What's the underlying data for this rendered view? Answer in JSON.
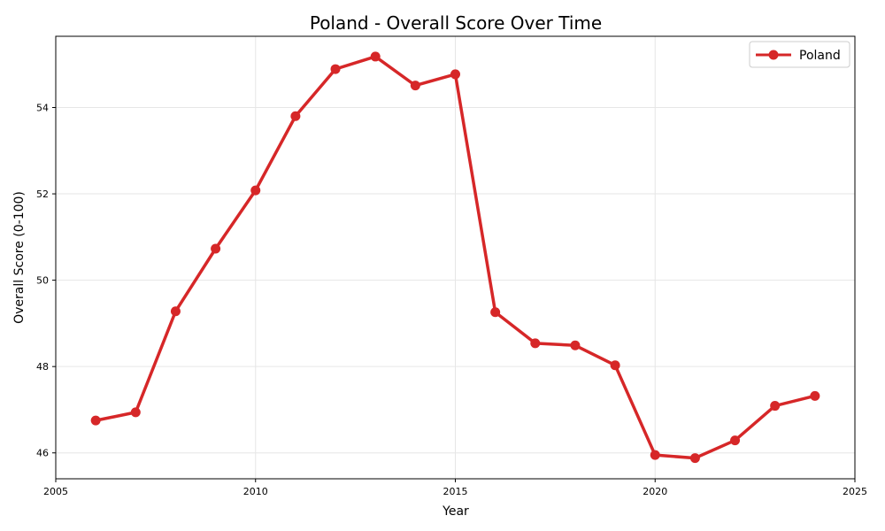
{
  "chart_data": {
    "type": "line",
    "title": "Poland - Overall Score Over Time",
    "xlabel": "Year",
    "ylabel": "Overall Score (0-100)",
    "xlim": [
      2005,
      2025
    ],
    "ylim": [
      45.4,
      55.65
    ],
    "x_ticks": [
      2005,
      2010,
      2015,
      2020,
      2025
    ],
    "y_ticks": [
      46,
      48,
      50,
      52,
      54
    ],
    "grid": true,
    "legend_position": "top-right",
    "x": [
      2006,
      2007,
      2008,
      2009,
      2010,
      2011,
      2012,
      2013,
      2014,
      2015,
      2016,
      2017,
      2018,
      2019,
      2020,
      2021,
      2022,
      2023,
      2024
    ],
    "series": [
      {
        "name": "Poland",
        "color": "#d62728",
        "values": [
          46.75,
          46.94,
          49.28,
          50.73,
          52.08,
          53.8,
          54.89,
          55.18,
          54.51,
          54.77,
          49.26,
          48.54,
          48.49,
          48.03,
          45.95,
          45.88,
          46.29,
          47.09,
          47.32
        ]
      }
    ]
  }
}
